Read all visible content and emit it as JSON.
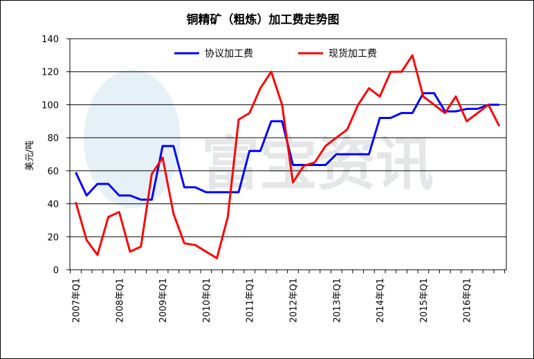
{
  "chart_data": {
    "type": "line",
    "title": "铜精矿（粗炼）加工费走势图",
    "ylabel": "美元/吨",
    "xlabel": "",
    "ylim": [
      0,
      140
    ],
    "yticks": [
      0,
      20,
      40,
      60,
      80,
      100,
      120,
      140
    ],
    "grid": "horizontal",
    "legend_position": "top",
    "watermark": "富宝资讯",
    "x_tick_labels": [
      "2007年Q1",
      "2008年Q1",
      "2009年Q1",
      "2010年Q1",
      "2011年Q1",
      "2012年Q1",
      "2013年Q1",
      "2014年Q1",
      "2015年Q1",
      "2016年Q1"
    ],
    "x_tick_positions": [
      0,
      4,
      8,
      12,
      16,
      20,
      24,
      28,
      32,
      36
    ],
    "x_count": 40,
    "series": [
      {
        "name": "协议加工费",
        "color": "#0000ff",
        "x": [
          0,
          1,
          2,
          3,
          4,
          5,
          6,
          7,
          8,
          9,
          10,
          11,
          12,
          13,
          14,
          15,
          16,
          17,
          18,
          19,
          20,
          21,
          22,
          23,
          24,
          25,
          26,
          27,
          28,
          29,
          30,
          31,
          32,
          33,
          34,
          35,
          36,
          37,
          38,
          39
        ],
        "values": [
          59,
          45,
          52,
          52,
          45,
          45,
          42.5,
          42.5,
          75,
          75,
          50,
          50,
          47,
          47,
          47,
          47,
          72,
          72,
          90,
          90,
          63.5,
          63.5,
          63.5,
          63.5,
          70,
          70,
          70,
          70,
          92,
          92,
          95,
          95,
          107,
          107,
          96,
          96,
          97.5,
          97.5,
          100,
          100
        ]
      },
      {
        "name": "现货加工费",
        "color": "#ff0000",
        "x": [
          0,
          1,
          2,
          3,
          4,
          5,
          6,
          7,
          8,
          9,
          10,
          11,
          12,
          13,
          14,
          15,
          16,
          17,
          18,
          19,
          20,
          21,
          22,
          23,
          24,
          25,
          26,
          27,
          28,
          29,
          30,
          31,
          32,
          33,
          34,
          35,
          36,
          37,
          38,
          39
        ],
        "values": [
          41,
          18,
          9,
          32,
          35,
          11,
          14,
          58,
          68,
          34,
          16,
          15,
          11,
          7,
          32,
          91,
          95,
          110,
          120,
          100,
          53,
          63,
          65,
          75,
          80,
          85,
          100,
          110,
          105,
          120,
          120,
          130,
          105,
          100,
          95,
          105,
          90,
          95,
          100,
          87
        ]
      }
    ]
  }
}
